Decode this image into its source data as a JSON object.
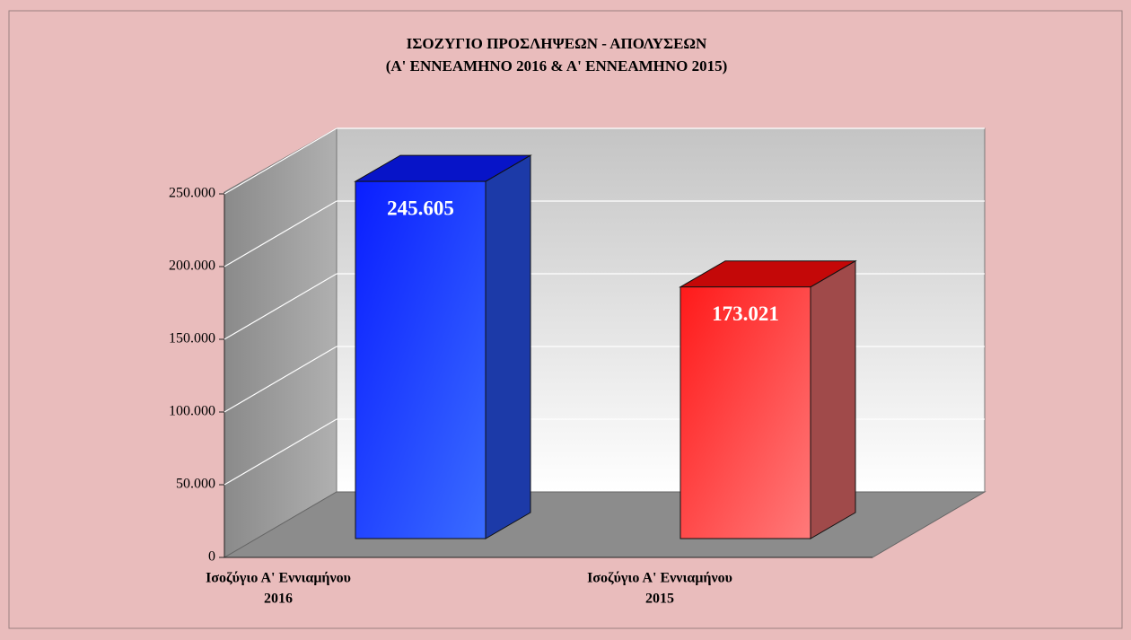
{
  "chart_data": {
    "type": "bar3d",
    "title": [
      "ΙΣΟΖΥΓΙΟ ΠΡΟΣΛΗΨΕΩΝ - ΑΠΟΛΥΣΕΩΝ",
      "(Α' ΕΝΝΕΑΜΗΝΟ  2016  &  Α' ΕΝΝΕΑΜΗΝΟ  2015)"
    ],
    "categories": [
      [
        "Ισοζύγιο Α' Εννιαμήνου",
        "2016"
      ],
      [
        "Ισοζύγιο Α' Εννιαμήνου",
        "2015"
      ]
    ],
    "values": [
      245605,
      173021
    ],
    "value_labels": [
      "245.605",
      "173.021"
    ],
    "colors": [
      "#1f3fff",
      "#ff3030"
    ],
    "ylim": [
      0,
      250000
    ],
    "yticks": [
      0,
      {
        "value": 50000,
        "label": "50.000"
      },
      {
        "value": 100000,
        "label": "100.000"
      },
      {
        "value": 150000,
        "label": "150.000"
      },
      {
        "value": 200000,
        "label": "200.000"
      },
      {
        "value": 250000,
        "label": "250.000"
      }
    ],
    "grid": true
  }
}
